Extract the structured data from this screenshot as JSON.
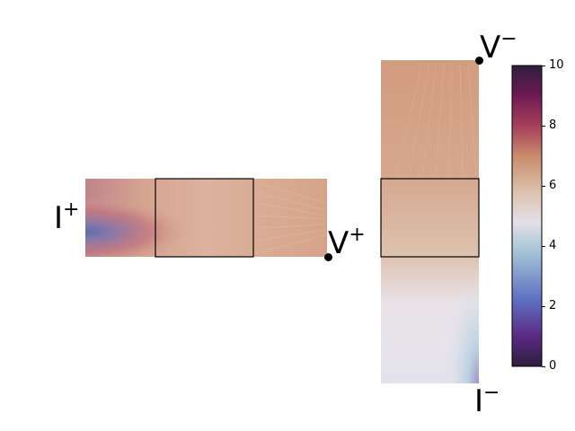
{
  "terminals": {
    "i_plus": {
      "base": "I",
      "sup": "+"
    },
    "v_plus": {
      "base": "V",
      "sup": "+"
    },
    "v_minus": {
      "base": "V",
      "sup": "−"
    },
    "i_minus": {
      "base": "I",
      "sup": "−"
    }
  },
  "colorbar": {
    "ticks": [
      "0",
      "2",
      "4",
      "6",
      "8",
      "10"
    ],
    "range": [
      0,
      10
    ],
    "colormap": "twilight_shifted",
    "stops": [
      "#2d1e3e",
      "#5b2a82",
      "#5e6fc2",
      "#a3c4d6",
      "#e4dfe8",
      "#dcc2ae",
      "#c98a6b",
      "#a63f5b",
      "#6f1a52",
      "#2d1e3e"
    ]
  },
  "colors": {
    "box_outline": "#000000",
    "field_base": "#d9ab93",
    "field_peach": "#d29c80",
    "field_blue": "#5b6fb0",
    "field_pink": "#c0727e",
    "field_white": "#ece9ef",
    "field_lavender": "#a88ec8"
  }
}
